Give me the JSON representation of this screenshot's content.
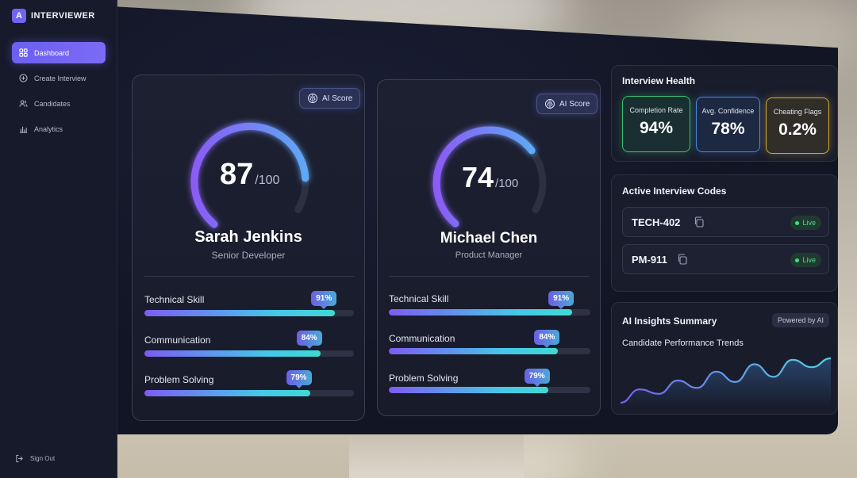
{
  "brand": {
    "logo_letter": "A",
    "name": "INTERVIEWER"
  },
  "nav": [
    {
      "label": "Dashboard",
      "icon": "grid-icon",
      "active": true
    },
    {
      "label": "Create Interview",
      "icon": "plus-circle-icon",
      "active": false
    },
    {
      "label": "Candidates",
      "icon": "users-icon",
      "active": false
    },
    {
      "label": "Analytics",
      "icon": "bar-chart-icon",
      "active": false
    }
  ],
  "sign_out": "Sign Out",
  "candidates": [
    {
      "ai_badge": "AI Score",
      "score": "87",
      "score_denominator": "/100",
      "score_fraction": 0.87,
      "name": "Sarah Jenkins",
      "role": "Senior Developer",
      "skills": [
        {
          "label": "Technical Skill",
          "pct_label": "91%",
          "value": 91
        },
        {
          "label": "Communication",
          "pct_label": "84%",
          "value": 84
        },
        {
          "label": "Problem Solving",
          "pct_label": "79%",
          "value": 79
        }
      ]
    },
    {
      "ai_badge": "AI Score",
      "score": "74",
      "score_denominator": "/100",
      "score_fraction": 0.74,
      "name": "Michael Chen",
      "role": "Product Manager",
      "skills": [
        {
          "label": "Technical Skill",
          "pct_label": "91%",
          "value": 91
        },
        {
          "label": "Communication",
          "pct_label": "84%",
          "value": 84
        },
        {
          "label": "Problem Solving",
          "pct_label": "79%",
          "value": 79
        }
      ]
    }
  ],
  "health": {
    "title": "Interview Health",
    "metrics": [
      {
        "label": "Completion Rate",
        "value": "94%",
        "color": "#3bbf6f"
      },
      {
        "label": "Avg. Confidence",
        "value": "78%",
        "color": "#4d86d6"
      },
      {
        "label": "Cheating Flags",
        "value": "0.2%",
        "color": "#d3aa3a"
      }
    ]
  },
  "codes": {
    "title": "Active Interview Codes",
    "items": [
      {
        "code": "TECH-402",
        "status": "Live"
      },
      {
        "code": "PM-911",
        "status": "Live"
      }
    ]
  },
  "insights": {
    "title": "AI Insights Summary",
    "powered": "Powered by AI",
    "trend_label": "Candidate Performance Trends",
    "trend_values": [
      10,
      28,
      22,
      40,
      30,
      52,
      38,
      62,
      45,
      68,
      58,
      70
    ]
  },
  "colors": {
    "accent": "#6f65f0",
    "live": "#3ee07f"
  }
}
